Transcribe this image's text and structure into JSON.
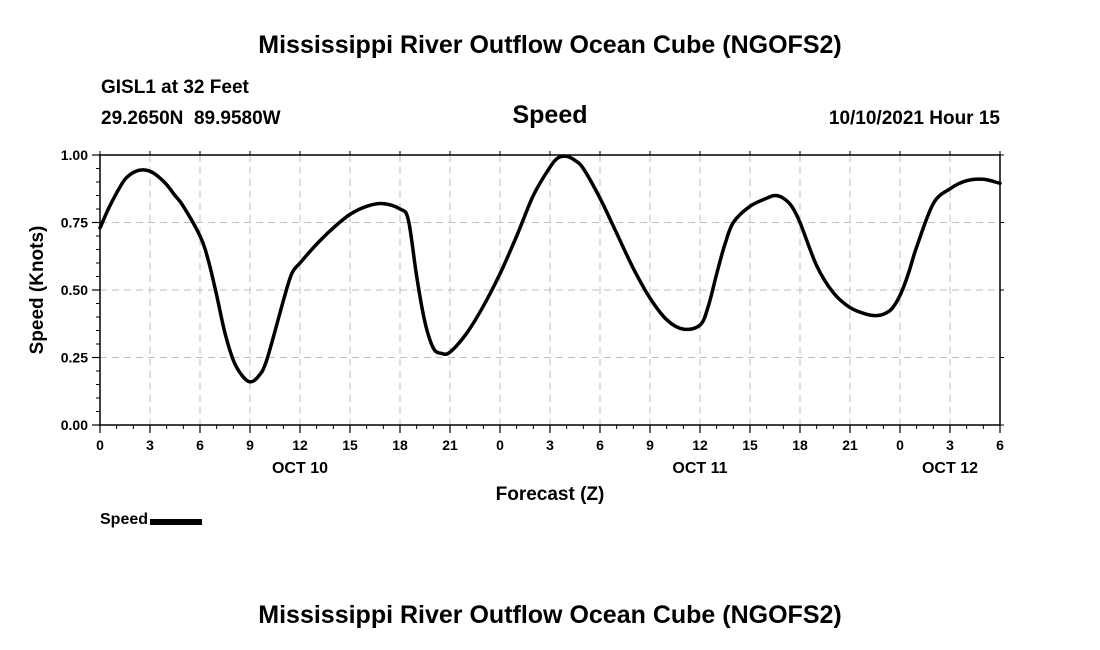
{
  "page": {
    "title_top": "Mississippi River Outflow Ocean Cube (NGOFS2)",
    "title_bottom": "Mississippi River Outflow Ocean Cube (NGOFS2)"
  },
  "station": {
    "name": "GISL1 at 32 Feet",
    "coords": "29.2650N  89.9580W"
  },
  "forecast_time": "10/10/2021 Hour 15",
  "colors": {
    "line": "#000000",
    "grid": "#bfbfbf",
    "background": "#ffffff"
  },
  "legend": {
    "label": "Speed"
  },
  "chart_data": {
    "type": "line",
    "title": "Speed",
    "xlabel": "Forecast (Z)",
    "ylabel": "Speed (Knots)",
    "xlim": [
      0,
      54
    ],
    "ylim": [
      0,
      1.0
    ],
    "grid": true,
    "x_ticks": [
      0,
      3,
      6,
      9,
      12,
      15,
      18,
      21,
      24,
      27,
      30,
      33,
      36,
      39,
      42,
      45,
      48,
      51,
      54
    ],
    "x_tick_labels": [
      "0",
      "3",
      "6",
      "9",
      "12",
      "15",
      "18",
      "21",
      "0",
      "3",
      "6",
      "9",
      "12",
      "15",
      "18",
      "21",
      "0",
      "3",
      "6"
    ],
    "date_labels": [
      {
        "hour": 12,
        "label": "OCT 10"
      },
      {
        "hour": 36,
        "label": "OCT 11"
      },
      {
        "hour": 51,
        "label": "OCT 12"
      }
    ],
    "y_ticks": [
      0,
      0.25,
      0.5,
      0.75,
      1.0
    ],
    "y_tick_labels": [
      "0.00",
      "0.25",
      "0.50",
      "0.75",
      "1.00"
    ],
    "series": [
      {
        "name": "Speed",
        "x": [
          0,
          0.5,
          1,
          1.5,
          2,
          2.5,
          3,
          3.5,
          4,
          4.5,
          5,
          6,
          6.5,
          7,
          7.5,
          8,
          8.5,
          9,
          9.5,
          10,
          11,
          11.5,
          12,
          13,
          14,
          15,
          16,
          17,
          18,
          18.5,
          19,
          19.5,
          20,
          20.5,
          21,
          22,
          23,
          24,
          25,
          26,
          27,
          27.5,
          28,
          28.5,
          29,
          30,
          31,
          32,
          33,
          34,
          35,
          36,
          36.5,
          37,
          37.5,
          38,
          39,
          40,
          40.5,
          41,
          41.5,
          42,
          43,
          44,
          45,
          46,
          46.5,
          47,
          47.5,
          48,
          48.5,
          49,
          50,
          51,
          52,
          53,
          54
        ],
        "values": [
          0.73,
          0.8,
          0.86,
          0.91,
          0.935,
          0.945,
          0.94,
          0.92,
          0.89,
          0.85,
          0.81,
          0.7,
          0.61,
          0.48,
          0.34,
          0.24,
          0.185,
          0.16,
          0.18,
          0.24,
          0.46,
          0.56,
          0.6,
          0.67,
          0.73,
          0.78,
          0.81,
          0.82,
          0.8,
          0.76,
          0.55,
          0.38,
          0.285,
          0.265,
          0.27,
          0.34,
          0.44,
          0.56,
          0.7,
          0.85,
          0.955,
          0.99,
          0.995,
          0.98,
          0.95,
          0.84,
          0.71,
          0.58,
          0.47,
          0.39,
          0.355,
          0.37,
          0.44,
          0.56,
          0.67,
          0.75,
          0.81,
          0.84,
          0.85,
          0.84,
          0.81,
          0.75,
          0.59,
          0.49,
          0.435,
          0.41,
          0.405,
          0.41,
          0.43,
          0.48,
          0.56,
          0.66,
          0.82,
          0.875,
          0.905,
          0.91,
          0.895
        ]
      }
    ]
  }
}
